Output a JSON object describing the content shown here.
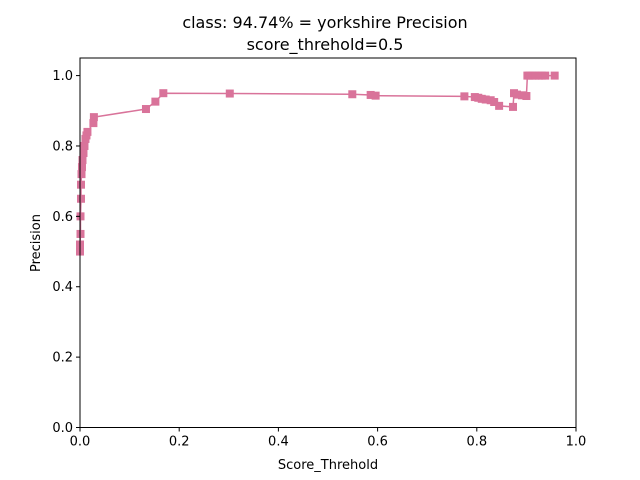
{
  "chart_data": {
    "type": "line",
    "title_line1": "class: 94.74% = yorkshire Precision",
    "title_line2": "score_threhold=0.5",
    "xlabel": "Score_Threhold",
    "ylabel": "Precision",
    "xlim": [
      0,
      1
    ],
    "ylim": [
      0,
      1.05
    ],
    "x_ticks": [
      "0.0",
      "0.2",
      "0.4",
      "0.6",
      "0.8",
      "1.0"
    ],
    "y_ticks": [
      "0.0",
      "0.2",
      "0.4",
      "0.6",
      "0.8",
      "1.0"
    ],
    "grid": false,
    "legend": "none",
    "series": [
      {
        "color": "#d9739a",
        "marker": "square",
        "x": [
          0.0,
          0.0,
          0.001,
          0.001,
          0.002,
          0.002,
          0.003,
          0.004,
          0.005,
          0.007,
          0.009,
          0.011,
          0.013,
          0.015,
          0.027,
          0.028,
          0.133,
          0.152,
          0.168,
          0.302,
          0.549,
          0.586,
          0.596,
          0.775,
          0.796,
          0.803,
          0.81,
          0.818,
          0.828,
          0.835,
          0.845,
          0.873,
          0.875,
          0.881,
          0.891,
          0.9,
          0.902,
          0.906,
          0.912,
          0.918,
          0.925,
          0.931,
          0.938,
          0.957
        ],
        "y": [
          0.5,
          0.52,
          0.55,
          0.6,
          0.65,
          0.69,
          0.72,
          0.74,
          0.76,
          0.78,
          0.8,
          0.82,
          0.83,
          0.84,
          0.865,
          0.882,
          0.905,
          0.926,
          0.95,
          0.949,
          0.947,
          0.945,
          0.943,
          0.941,
          0.939,
          0.937,
          0.934,
          0.932,
          0.93,
          0.925,
          0.914,
          0.911,
          0.95,
          0.946,
          0.944,
          0.942,
          1.0,
          1.0,
          1.0,
          1.0,
          1.0,
          1.0,
          1.0,
          1.0
        ]
      }
    ]
  }
}
